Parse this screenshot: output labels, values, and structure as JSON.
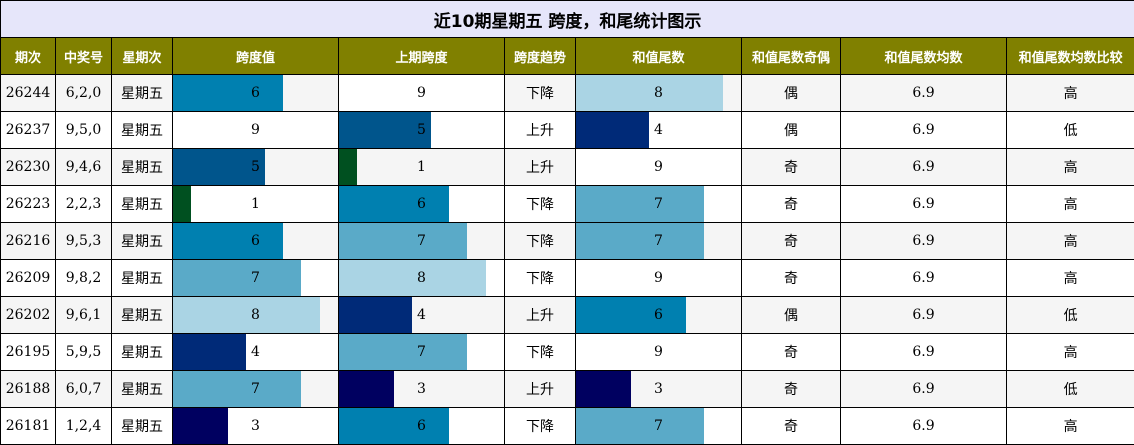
{
  "title": "近10期星期五 跨度，和尾统计图示",
  "headers": [
    "期次",
    "中奖号",
    "星期次",
    "跨度值",
    "上期跨度",
    "跨度趋势",
    "和值尾数",
    "和值尾数奇偶",
    "和值尾数均数",
    "和值尾数均数比较"
  ],
  "colors": {
    "header_bg": "#808000",
    "title_bg": "#e6e6fa",
    "alt_row_bg": "#f5f5f5",
    "bar_by_value": {
      "1": "#005020",
      "3": "#000060",
      "4": "#002a78",
      "5": "#00558c",
      "6": "#0080b0",
      "7": "#5aaac8",
      "8": "#aad4e4",
      "9": "#ffffff"
    }
  },
  "bar_max": 9,
  "rows": [
    {
      "issue": "26244",
      "number": "6,2,0",
      "weekday": "星期五",
      "span": 6,
      "prev_span": 9,
      "trend": "下降",
      "tail": 8,
      "parity": "偶",
      "avg": "6.9",
      "compare": "高"
    },
    {
      "issue": "26237",
      "number": "9,5,0",
      "weekday": "星期五",
      "span": 9,
      "prev_span": 5,
      "trend": "上升",
      "tail": 4,
      "parity": "偶",
      "avg": "6.9",
      "compare": "低"
    },
    {
      "issue": "26230",
      "number": "9,4,6",
      "weekday": "星期五",
      "span": 5,
      "prev_span": 1,
      "trend": "上升",
      "tail": 9,
      "parity": "奇",
      "avg": "6.9",
      "compare": "高"
    },
    {
      "issue": "26223",
      "number": "2,2,3",
      "weekday": "星期五",
      "span": 1,
      "prev_span": 6,
      "trend": "下降",
      "tail": 7,
      "parity": "奇",
      "avg": "6.9",
      "compare": "高"
    },
    {
      "issue": "26216",
      "number": "9,5,3",
      "weekday": "星期五",
      "span": 6,
      "prev_span": 7,
      "trend": "下降",
      "tail": 7,
      "parity": "奇",
      "avg": "6.9",
      "compare": "高"
    },
    {
      "issue": "26209",
      "number": "9,8,2",
      "weekday": "星期五",
      "span": 7,
      "prev_span": 8,
      "trend": "下降",
      "tail": 9,
      "parity": "奇",
      "avg": "6.9",
      "compare": "高"
    },
    {
      "issue": "26202",
      "number": "9,6,1",
      "weekday": "星期五",
      "span": 8,
      "prev_span": 4,
      "trend": "上升",
      "tail": 6,
      "parity": "偶",
      "avg": "6.9",
      "compare": "低"
    },
    {
      "issue": "26195",
      "number": "5,9,5",
      "weekday": "星期五",
      "span": 4,
      "prev_span": 7,
      "trend": "下降",
      "tail": 9,
      "parity": "奇",
      "avg": "6.9",
      "compare": "高"
    },
    {
      "issue": "26188",
      "number": "6,0,7",
      "weekday": "星期五",
      "span": 7,
      "prev_span": 3,
      "trend": "上升",
      "tail": 3,
      "parity": "奇",
      "avg": "6.9",
      "compare": "低"
    },
    {
      "issue": "26181",
      "number": "1,2,4",
      "weekday": "星期五",
      "span": 3,
      "prev_span": 6,
      "trend": "下降",
      "tail": 7,
      "parity": "奇",
      "avg": "6.9",
      "compare": "高"
    }
  ]
}
